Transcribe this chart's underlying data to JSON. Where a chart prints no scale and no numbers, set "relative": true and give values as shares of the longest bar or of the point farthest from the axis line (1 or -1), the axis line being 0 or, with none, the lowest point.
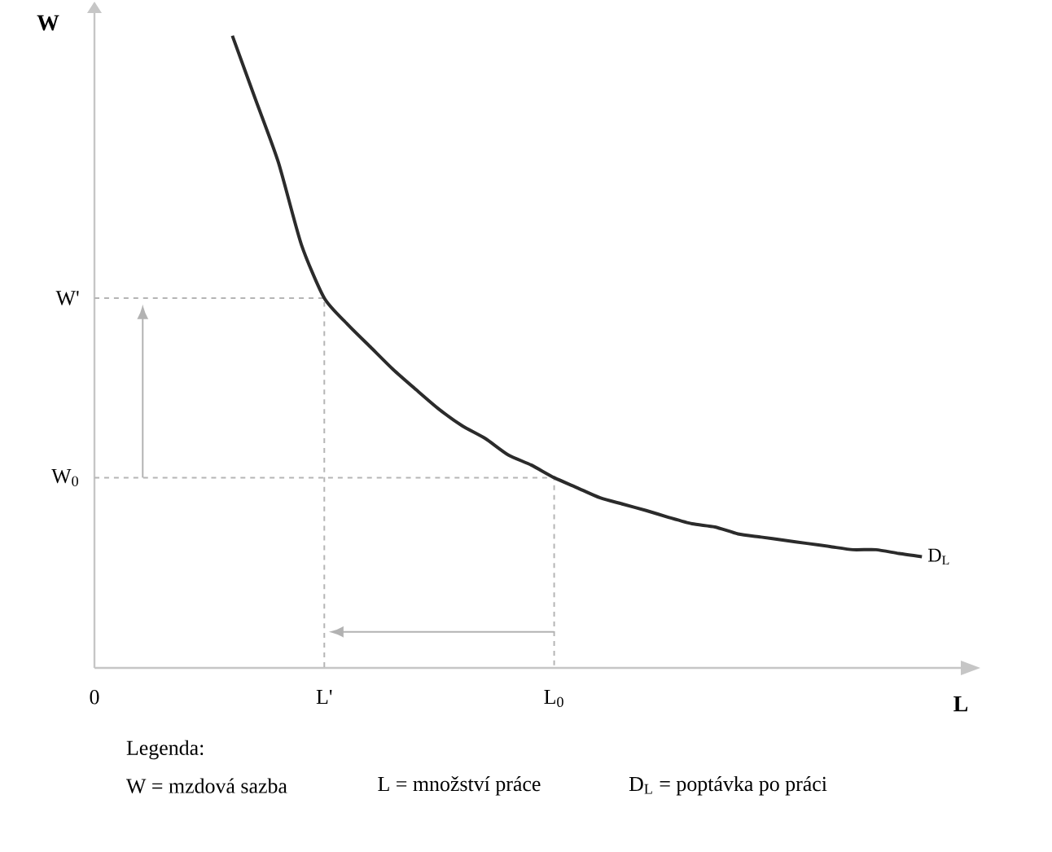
{
  "chart_data": {
    "type": "line",
    "relative": true,
    "xlabel": "L",
    "ylabel": "W",
    "categories": [
      "0",
      null,
      null,
      null,
      null,
      null,
      null,
      null,
      null,
      null,
      "L'",
      null,
      null,
      null,
      null,
      null,
      null,
      null,
      null,
      null,
      "L$_{0}$",
      null,
      null,
      null,
      null,
      null,
      null,
      null,
      null,
      null,
      null,
      null,
      null,
      null,
      null,
      null,
      null
    ],
    "series": [
      {
        "name": "D$_{L}$",
        "color": "#2b2b2b",
        "values": [
          null,
          null,
          null,
          null,
          null,
          null,
          1,
          0.9,
          0.8,
          0.67,
          0.585,
          0.544,
          0.508,
          0.472,
          0.44,
          0.409,
          0.383,
          0.363,
          0.337,
          0.321,
          0.301,
          0.285,
          0.269,
          0.259,
          0.249,
          0.238,
          0.228,
          0.223,
          0.212,
          0.207,
          0.202,
          0.197,
          0.192,
          0.187,
          0.187,
          0.181,
          0.176
        ]
      }
    ],
    "ref_lines": [
      {
        "axis": "y",
        "value": 0.585,
        "label": "W'",
        "line_style": "dashed",
        "color": "#b5b5b5"
      },
      {
        "axis": "y",
        "value": 0.301,
        "label": "W$_{0}$",
        "line_style": "dashed",
        "color": "#b5b5b5"
      }
    ],
    "annotations": [
      "Legenda:",
      "W = mzdová sazba",
      "L  = množství práce",
      "D$_{L}$ = poptávka po práci"
    ]
  }
}
